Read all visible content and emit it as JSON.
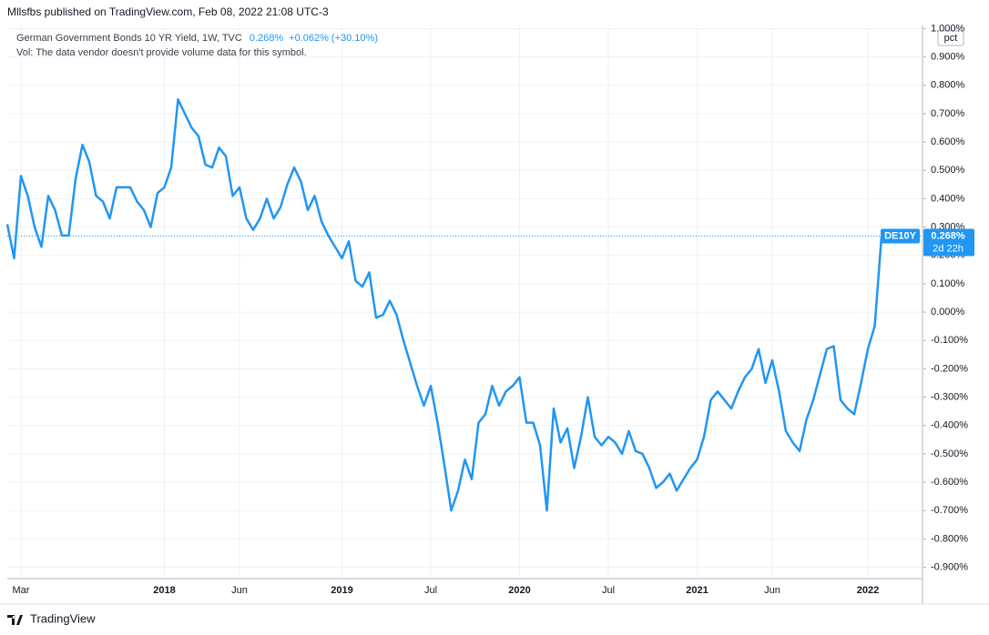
{
  "header": {
    "published": "Mllsfbs published on TradingView.com, Feb 08, 2022 21:08 UTC-3"
  },
  "footer": {
    "brand": "TradingView"
  },
  "chart_data": {
    "type": "line",
    "title": "German Government Bonds 10 YR Yield, 1W, TVC",
    "last_value_label": "0.268%",
    "change_label": "+0.062% (+30.10%)",
    "subtitle": "Vol: The data vendor doesn't provide volume data for this symbol.",
    "y_unit": "pct",
    "symbol": "DE10Y",
    "countdown": "2d 22h",
    "grid": true,
    "categories": [
      null,
      null,
      "Mar",
      null,
      null,
      null,
      null,
      null,
      null,
      null,
      null,
      null,
      null,
      null,
      null,
      null,
      null,
      null,
      null,
      null,
      null,
      null,
      null,
      "2018",
      null,
      null,
      null,
      null,
      null,
      null,
      null,
      null,
      null,
      null,
      "Jun",
      null,
      null,
      null,
      null,
      null,
      null,
      null,
      null,
      null,
      null,
      null,
      null,
      null,
      null,
      "2019",
      null,
      null,
      null,
      null,
      null,
      null,
      null,
      null,
      null,
      null,
      null,
      null,
      "Jul",
      null,
      null,
      null,
      null,
      null,
      null,
      null,
      null,
      null,
      null,
      null,
      null,
      "2020",
      null,
      null,
      null,
      null,
      null,
      null,
      null,
      null,
      null,
      null,
      null,
      null,
      "Jul",
      null,
      null,
      null,
      null,
      null,
      null,
      null,
      null,
      null,
      null,
      null,
      null,
      "2021",
      null,
      null,
      null,
      null,
      null,
      null,
      null,
      null,
      null,
      null,
      "Jun",
      null,
      null,
      null,
      null,
      null,
      null,
      null,
      null,
      null,
      null,
      null,
      null,
      null,
      "2022",
      null,
      null
    ],
    "series": [
      {
        "name": "DE10Y",
        "color": "#2196f3",
        "values": [
          0.31,
          0.19,
          0.48,
          0.41,
          0.3,
          0.23,
          0.41,
          0.36,
          0.27,
          0.27,
          0.47,
          0.59,
          0.53,
          0.41,
          0.39,
          0.33,
          0.44,
          0.44,
          0.44,
          0.39,
          0.36,
          0.3,
          0.42,
          0.44,
          0.51,
          0.75,
          0.7,
          0.65,
          0.62,
          0.52,
          0.51,
          0.58,
          0.55,
          0.41,
          0.44,
          0.33,
          0.29,
          0.33,
          0.4,
          0.33,
          0.37,
          0.45,
          0.51,
          0.46,
          0.36,
          0.41,
          0.32,
          0.27,
          0.23,
          0.19,
          0.25,
          0.11,
          0.09,
          0.14,
          -0.02,
          -0.01,
          0.04,
          -0.01,
          -0.1,
          -0.18,
          -0.26,
          -0.33,
          -0.26,
          -0.39,
          -0.54,
          -0.7,
          -0.63,
          -0.52,
          -0.59,
          -0.39,
          -0.36,
          -0.26,
          -0.33,
          -0.28,
          -0.26,
          -0.23,
          -0.39,
          -0.39,
          -0.47,
          -0.7,
          -0.34,
          -0.46,
          -0.41,
          -0.55,
          -0.44,
          -0.3,
          -0.44,
          -0.47,
          -0.44,
          -0.46,
          -0.5,
          -0.42,
          -0.49,
          -0.5,
          -0.55,
          -0.62,
          -0.6,
          -0.57,
          -0.63,
          -0.59,
          -0.55,
          -0.52,
          -0.44,
          -0.31,
          -0.28,
          -0.31,
          -0.34,
          -0.28,
          -0.23,
          -0.2,
          -0.13,
          -0.25,
          -0.17,
          -0.28,
          -0.42,
          -0.46,
          -0.49,
          -0.38,
          -0.31,
          -0.22,
          -0.13,
          -0.12,
          -0.31,
          -0.34,
          -0.36,
          -0.25,
          -0.13,
          -0.05,
          0.268
        ]
      }
    ],
    "ylim": [
      -0.94,
      1.011
    ],
    "yticks": [
      {
        "value": 1.0,
        "label": "1.000%"
      },
      {
        "value": 0.9,
        "label": "0.900%"
      },
      {
        "value": 0.8,
        "label": "0.800%"
      },
      {
        "value": 0.7,
        "label": "0.700%"
      },
      {
        "value": 0.6,
        "label": "0.600%"
      },
      {
        "value": 0.5,
        "label": "0.500%"
      },
      {
        "value": 0.4,
        "label": "0.400%"
      },
      {
        "value": 0.3,
        "label": "0.300%"
      },
      {
        "value": 0.2,
        "label": "0.200%"
      },
      {
        "value": 0.1,
        "label": "0.100%"
      },
      {
        "value": 0.0,
        "label": "0.000%"
      },
      {
        "value": -0.1,
        "label": "-0.100%"
      },
      {
        "value": -0.2,
        "label": "-0.200%"
      },
      {
        "value": -0.3,
        "label": "-0.300%"
      },
      {
        "value": -0.4,
        "label": "-0.400%"
      },
      {
        "value": -0.5,
        "label": "-0.500%"
      },
      {
        "value": -0.6,
        "label": "-0.600%"
      },
      {
        "value": -0.7,
        "label": "-0.700%"
      },
      {
        "value": -0.8,
        "label": "-0.800%"
      },
      {
        "value": -0.9,
        "label": "-0.900%"
      }
    ]
  }
}
